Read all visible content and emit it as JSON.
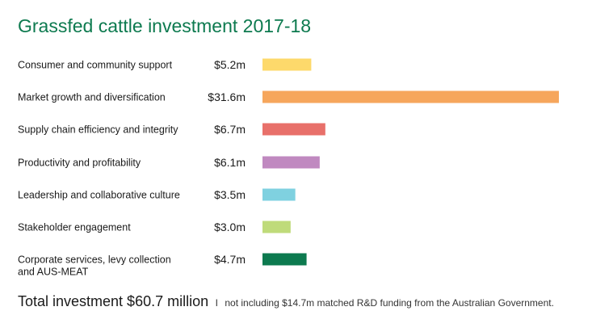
{
  "chart_data": {
    "type": "bar",
    "orientation": "horizontal",
    "title": "Grassfed cattle investment 2017-18",
    "unit": "$m",
    "categories": [
      [
        "Consumer and community support"
      ],
      [
        "Market growth and diversification"
      ],
      [
        "Supply chain efficiency and integrity"
      ],
      [
        "Productivity and profitability"
      ],
      [
        "Leadership and collaborative culture"
      ],
      [
        "Stakeholder engagement"
      ],
      [
        "Corporate services, levy collection",
        "and AUS-MEAT"
      ]
    ],
    "values": [
      5.2,
      31.6,
      6.7,
      6.1,
      3.5,
      3.0,
      4.7
    ],
    "value_labels": [
      "$5.2m",
      "$31.6m",
      "$6.7m",
      "$6.1m",
      "$3.5m",
      "$3.0m",
      "$4.7m"
    ],
    "colors": [
      "#fdd96b",
      "#f6a65c",
      "#e8706a",
      "#c089c0",
      "#7fd1e0",
      "#bfdb7a",
      "#0d7a4f"
    ],
    "xlim": [
      0,
      31.6
    ],
    "grid": false,
    "legend": "none"
  },
  "footer": {
    "total": "Total investment $60.7 million",
    "separator": "I",
    "note": "not including $14.7m matched R&D funding from the Australian Government."
  }
}
